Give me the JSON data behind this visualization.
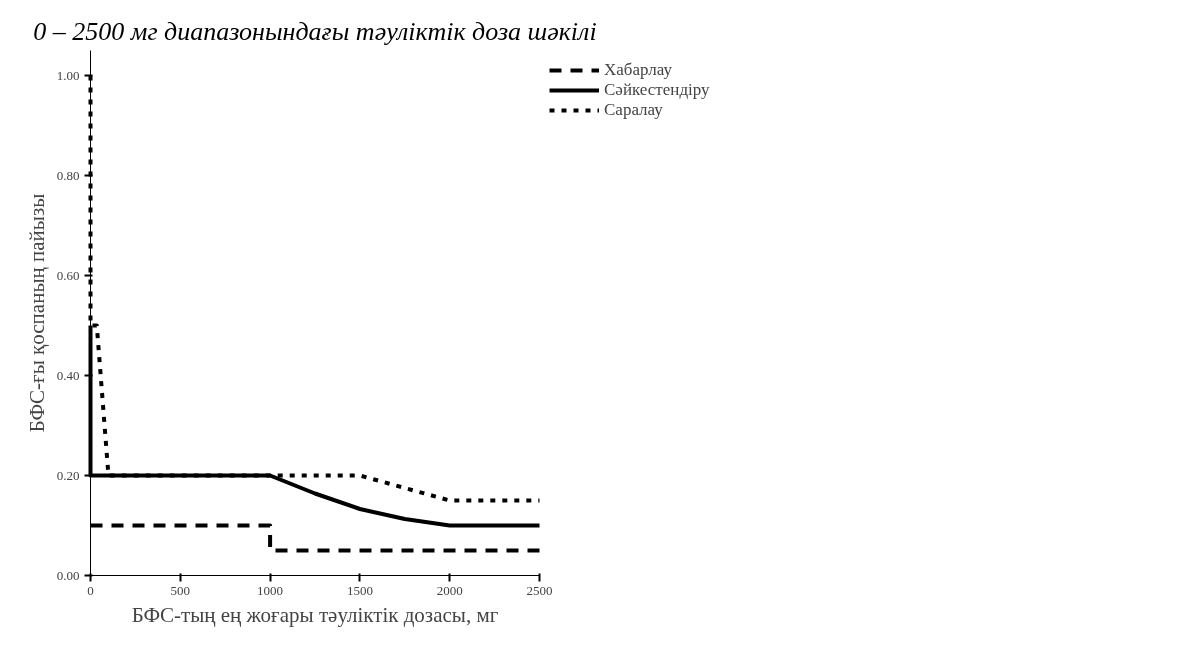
{
  "chart_data": {
    "type": "line",
    "title": "0 – 2500 мг диапазонындағы тәуліктік доза шәкілі",
    "xlabel": "БФС-тың ең жоғары тәуліктік дозасы, мг",
    "ylabel": "БФС-ғы қоспаның пайызы",
    "xlim": [
      0,
      2500
    ],
    "ylim": [
      0,
      1.05
    ],
    "xticks": [
      0,
      500,
      1000,
      1500,
      2000,
      2500
    ],
    "yticks": [
      {
        "value": 0,
        "label": "0.00"
      },
      {
        "value": 0.2,
        "label": "0.20"
      },
      {
        "value": 0.4,
        "label": "0.40"
      },
      {
        "value": 0.6,
        "label": "0.60"
      },
      {
        "value": 0.8,
        "label": "0.80"
      },
      {
        "value": 1.0,
        "label": "1.00"
      }
    ],
    "grid": false,
    "legend": "top right",
    "marker": "none",
    "series": [
      {
        "name": "Хабарлау",
        "color": "#000000",
        "line_style": "dashed",
        "x": [
          0,
          1000,
          1000,
          2500
        ],
        "values": [
          0.1,
          0.1,
          0.05,
          0.05
        ]
      },
      {
        "name": "Сәйкестендіру",
        "color": "#000000",
        "line_style": "solid",
        "x": [
          0,
          0,
          1000,
          1250,
          1500,
          1750,
          2000,
          2500
        ],
        "values": [
          0.5,
          0.2,
          0.2,
          0.164,
          0.133,
          0.113,
          0.1,
          0.1
        ]
      },
      {
        "name": "Саралау",
        "color": "#000000",
        "line_style": "dotted",
        "x": [
          0,
          0,
          35,
          100,
          1500,
          2000,
          2500
        ],
        "values": [
          1.0,
          0.5,
          0.5,
          0.2,
          0.2,
          0.15,
          0.15
        ]
      }
    ]
  }
}
